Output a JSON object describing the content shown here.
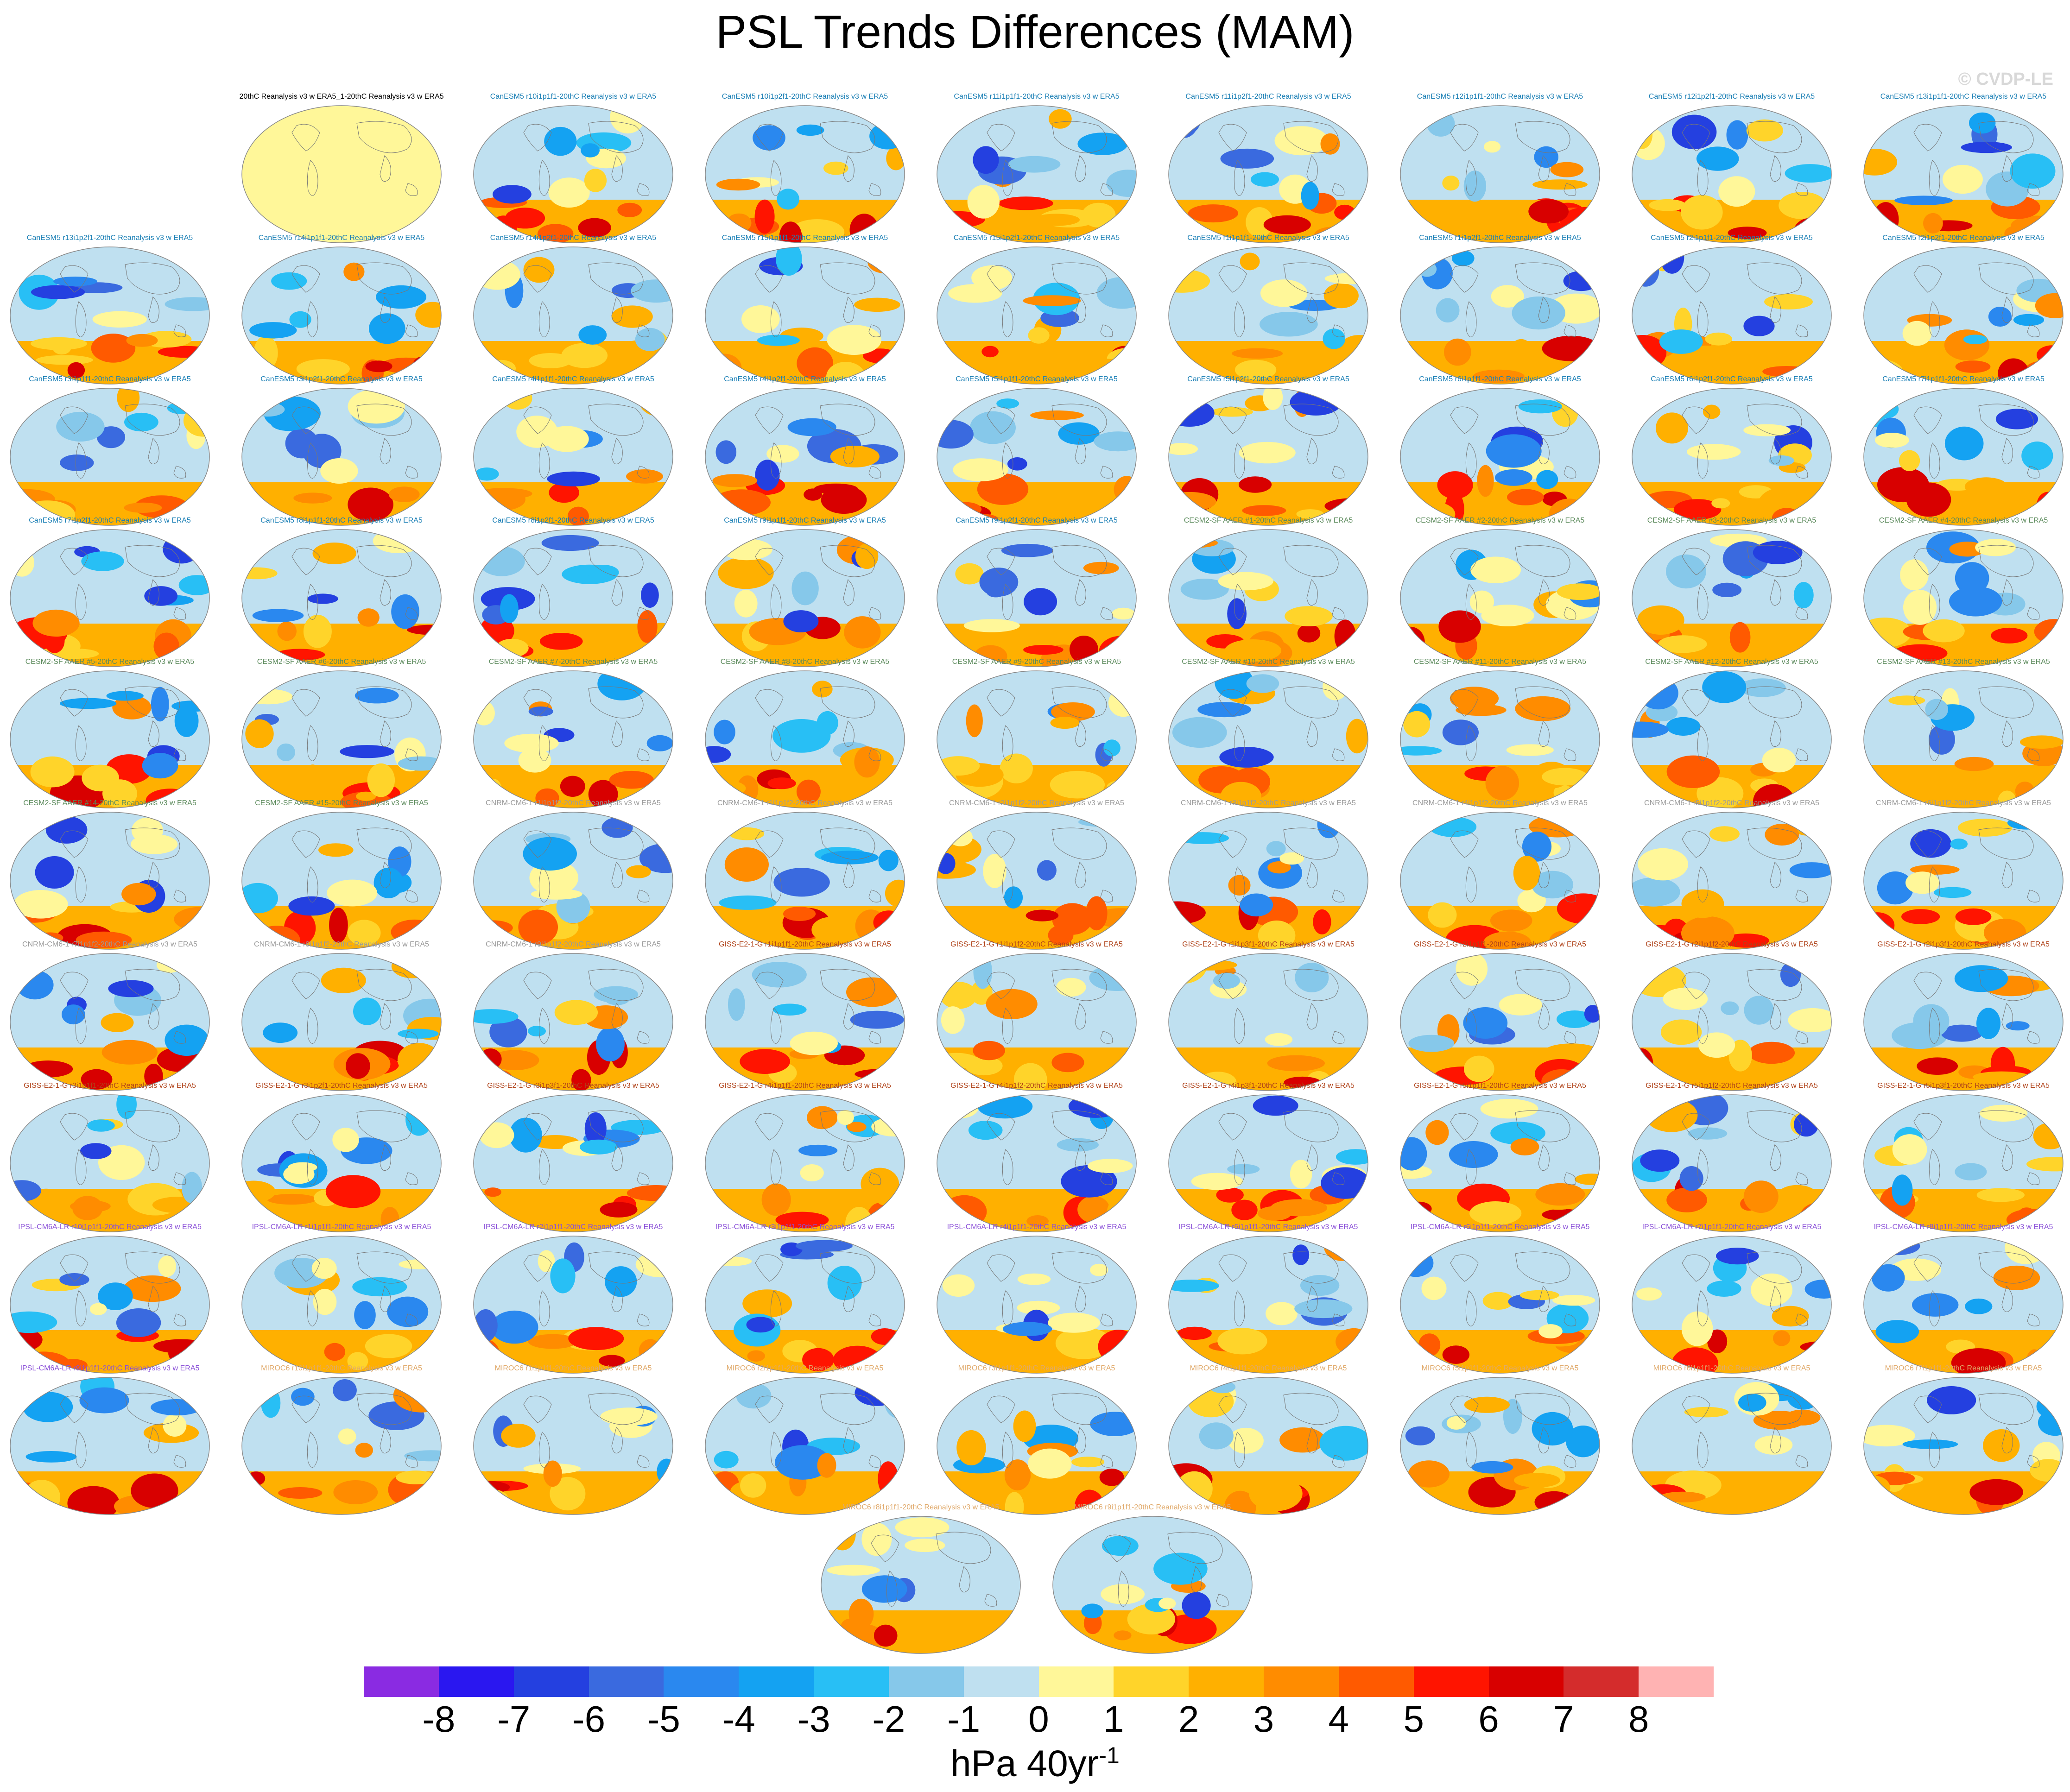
{
  "title": "PSL Trends Differences (MAM)",
  "watermark": "© CVDP-LE",
  "colors": {
    "CanESM5": "#1a7fb5",
    "CESM2": "#5b8a5b",
    "CNRM": "#9a9a9a",
    "GISS": "#b0431a",
    "IPSL": "#8a4fd8",
    "MIROC": "#e0a96a",
    "OBS": "#000000"
  },
  "panels": [
    {
      "label": "20thC Reanalysis v3 w ERA5_1-20thC Reanalysis v3 w ERA5",
      "group": "OBS"
    },
    {
      "label": "CanESM5 r10i1p1f1-20thC Reanalysis v3 w ERA5",
      "group": "CanESM5"
    },
    {
      "label": "CanESM5 r10i1p2f1-20thC Reanalysis v3 w ERA5",
      "group": "CanESM5"
    },
    {
      "label": "CanESM5 r11i1p1f1-20thC Reanalysis v3 w ERA5",
      "group": "CanESM5"
    },
    {
      "label": "CanESM5 r11i1p2f1-20thC Reanalysis v3 w ERA5",
      "group": "CanESM5"
    },
    {
      "label": "CanESM5 r12i1p1f1-20thC Reanalysis v3 w ERA5",
      "group": "CanESM5"
    },
    {
      "label": "CanESM5 r12i1p2f1-20thC Reanalysis v3 w ERA5",
      "group": "CanESM5"
    },
    {
      "label": "CanESM5 r13i1p1f1-20thC Reanalysis v3 w ERA5",
      "group": "CanESM5"
    },
    {
      "label": "CanESM5 r13i1p2f1-20thC Reanalysis v3 w ERA5",
      "group": "CanESM5"
    },
    {
      "label": "CanESM5 r14i1p1f1-20thC Reanalysis v3 w ERA5",
      "group": "CanESM5"
    },
    {
      "label": "CanESM5 r14i1p2f1-20thC Reanalysis v3 w ERA5",
      "group": "CanESM5"
    },
    {
      "label": "CanESM5 r15i1p1f1-20thC Reanalysis v3 w ERA5",
      "group": "CanESM5"
    },
    {
      "label": "CanESM5 r15i1p2f1-20thC Reanalysis v3 w ERA5",
      "group": "CanESM5"
    },
    {
      "label": "CanESM5 r1i1p1f1-20thC Reanalysis v3 w ERA5",
      "group": "CanESM5"
    },
    {
      "label": "CanESM5 r1i1p2f1-20thC Reanalysis v3 w ERA5",
      "group": "CanESM5"
    },
    {
      "label": "CanESM5 r2i1p1f1-20thC Reanalysis v3 w ERA5",
      "group": "CanESM5"
    },
    {
      "label": "CanESM5 r2i1p2f1-20thC Reanalysis v3 w ERA5",
      "group": "CanESM5"
    },
    {
      "label": "CanESM5 r3i1p1f1-20thC Reanalysis v3 w ERA5",
      "group": "CanESM5"
    },
    {
      "label": "CanESM5 r3i1p2f1-20thC Reanalysis v3 w ERA5",
      "group": "CanESM5"
    },
    {
      "label": "CanESM5 r4i1p1f1-20thC Reanalysis v3 w ERA5",
      "group": "CanESM5"
    },
    {
      "label": "CanESM5 r4i1p2f1-20thC Reanalysis v3 w ERA5",
      "group": "CanESM5"
    },
    {
      "label": "CanESM5 r5i1p1f1-20thC Reanalysis v3 w ERA5",
      "group": "CanESM5"
    },
    {
      "label": "CanESM5 r5i1p2f1-20thC Reanalysis v3 w ERA5",
      "group": "CanESM5"
    },
    {
      "label": "CanESM5 r6i1p1f1-20thC Reanalysis v3 w ERA5",
      "group": "CanESM5"
    },
    {
      "label": "CanESM5 r6i1p2f1-20thC Reanalysis v3 w ERA5",
      "group": "CanESM5"
    },
    {
      "label": "CanESM5 r7i1p1f1-20thC Reanalysis v3 w ERA5",
      "group": "CanESM5"
    },
    {
      "label": "CanESM5 r7i1p2f1-20thC Reanalysis v3 w ERA5",
      "group": "CanESM5"
    },
    {
      "label": "CanESM5 r8i1p1f1-20thC Reanalysis v3 w ERA5",
      "group": "CanESM5"
    },
    {
      "label": "CanESM5 r8i1p2f1-20thC Reanalysis v3 w ERA5",
      "group": "CanESM5"
    },
    {
      "label": "CanESM5 r9i1p1f1-20thC Reanalysis v3 w ERA5",
      "group": "CanESM5"
    },
    {
      "label": "CanESM5 r9i1p2f1-20thC Reanalysis v3 w ERA5",
      "group": "CanESM5"
    },
    {
      "label": "CESM2-SF AAER #1-20thC Reanalysis v3 w ERA5",
      "group": "CESM2"
    },
    {
      "label": "CESM2-SF AAER #2-20thC Reanalysis v3 w ERA5",
      "group": "CESM2"
    },
    {
      "label": "CESM2-SF AAER #3-20thC Reanalysis v3 w ERA5",
      "group": "CESM2"
    },
    {
      "label": "CESM2-SF AAER #4-20thC Reanalysis v3 w ERA5",
      "group": "CESM2"
    },
    {
      "label": "CESM2-SF AAER #5-20thC Reanalysis v3 w ERA5",
      "group": "CESM2"
    },
    {
      "label": "CESM2-SF AAER #6-20thC Reanalysis v3 w ERA5",
      "group": "CESM2"
    },
    {
      "label": "CESM2-SF AAER #7-20thC Reanalysis v3 w ERA5",
      "group": "CESM2"
    },
    {
      "label": "CESM2-SF AAER #8-20thC Reanalysis v3 w ERA5",
      "group": "CESM2"
    },
    {
      "label": "CESM2-SF AAER #9-20thC Reanalysis v3 w ERA5",
      "group": "CESM2"
    },
    {
      "label": "CESM2-SF AAER #10-20thC Reanalysis v3 w ERA5",
      "group": "CESM2"
    },
    {
      "label": "CESM2-SF AAER #11-20thC Reanalysis v3 w ERA5",
      "group": "CESM2"
    },
    {
      "label": "CESM2-SF AAER #12-20thC Reanalysis v3 w ERA5",
      "group": "CESM2"
    },
    {
      "label": "CESM2-SF AAER #13-20thC Reanalysis v3 w ERA5",
      "group": "CESM2"
    },
    {
      "label": "CESM2-SF AAER #14-20thC Reanalysis v3 w ERA5",
      "group": "CESM2"
    },
    {
      "label": "CESM2-SF AAER #15-20thC Reanalysis v3 w ERA5",
      "group": "CESM2"
    },
    {
      "label": "CNRM-CM6-1 r1i1p1f2-20thC Reanalysis v3 w ERA5",
      "group": "CNRM"
    },
    {
      "label": "CNRM-CM6-1 r1i1p1f2-20thC Reanalysis v3 w ERA5",
      "group": "CNRM"
    },
    {
      "label": "CNRM-CM6-1 r2i1p1f2-20thC Reanalysis v3 w ERA5",
      "group": "CNRM"
    },
    {
      "label": "CNRM-CM6-1 r3i1p1f2-20thC Reanalysis v3 w ERA5",
      "group": "CNRM"
    },
    {
      "label": "CNRM-CM6-1 r4i1p1f2-20thC Reanalysis v3 w ERA5",
      "group": "CNRM"
    },
    {
      "label": "CNRM-CM6-1 r5i1p1f2-20thC Reanalysis v3 w ERA5",
      "group": "CNRM"
    },
    {
      "label": "CNRM-CM6-1 r6i1p1f2-20thC Reanalysis v3 w ERA5",
      "group": "CNRM"
    },
    {
      "label": "CNRM-CM6-1 r7i1p1f2-20thC Reanalysis v3 w ERA5",
      "group": "CNRM"
    },
    {
      "label": "CNRM-CM6-1 r8i1p1f2-20thC Reanalysis v3 w ERA5",
      "group": "CNRM"
    },
    {
      "label": "CNRM-CM6-1 r9i1p1f2-20thC Reanalysis v3 w ERA5",
      "group": "CNRM"
    },
    {
      "label": "GISS-E2-1-G r1i1p1f1-20thC Reanalysis v3 w ERA5",
      "group": "GISS"
    },
    {
      "label": "GISS-E2-1-G r1i1p1f2-20thC Reanalysis v3 w ERA5",
      "group": "GISS"
    },
    {
      "label": "GISS-E2-1-G r1i1p3f1-20thC Reanalysis v3 w ERA5",
      "group": "GISS"
    },
    {
      "label": "GISS-E2-1-G r2i1p1f1-20thC Reanalysis v3 w ERA5",
      "group": "GISS"
    },
    {
      "label": "GISS-E2-1-G r2i1p1f2-20thC Reanalysis v3 w ERA5",
      "group": "GISS"
    },
    {
      "label": "GISS-E2-1-G r2i1p3f1-20thC Reanalysis v3 w ERA5",
      "group": "GISS"
    },
    {
      "label": "GISS-E2-1-G r3i1p1f1-20thC Reanalysis v3 w ERA5",
      "group": "GISS"
    },
    {
      "label": "GISS-E2-1-G r3i1p2f1-20thC Reanalysis v3 w ERA5",
      "group": "GISS"
    },
    {
      "label": "GISS-E2-1-G r3i1p3f1-20thC Reanalysis v3 w ERA5",
      "group": "GISS"
    },
    {
      "label": "GISS-E2-1-G r4i1p1f1-20thC Reanalysis v3 w ERA5",
      "group": "GISS"
    },
    {
      "label": "GISS-E2-1-G r4i1p1f2-20thC Reanalysis v3 w ERA5",
      "group": "GISS"
    },
    {
      "label": "GISS-E2-1-G r4i1p3f1-20thC Reanalysis v3 w ERA5",
      "group": "GISS"
    },
    {
      "label": "GISS-E2-1-G r5i1p1f1-20thC Reanalysis v3 w ERA5",
      "group": "GISS"
    },
    {
      "label": "GISS-E2-1-G r5i1p1f2-20thC Reanalysis v3 w ERA5",
      "group": "GISS"
    },
    {
      "label": "GISS-E2-1-G r5i1p3f1-20thC Reanalysis v3 w ERA5",
      "group": "GISS"
    },
    {
      "label": "IPSL-CM6A-LR r10i1p1f1-20thC Reanalysis v3 w ERA5",
      "group": "IPSL"
    },
    {
      "label": "IPSL-CM6A-LR r1i1p1f1-20thC Reanalysis v3 w ERA5",
      "group": "IPSL"
    },
    {
      "label": "IPSL-CM6A-LR r2i1p1f1-20thC Reanalysis v3 w ERA5",
      "group": "IPSL"
    },
    {
      "label": "IPSL-CM6A-LR r3i1p1f1-20thC Reanalysis v3 w ERA5",
      "group": "IPSL"
    },
    {
      "label": "IPSL-CM6A-LR r4i1p1f1-20thC Reanalysis v3 w ERA5",
      "group": "IPSL"
    },
    {
      "label": "IPSL-CM6A-LR r5i1p1f1-20thC Reanalysis v3 w ERA5",
      "group": "IPSL"
    },
    {
      "label": "IPSL-CM6A-LR r6i1p1f1-20thC Reanalysis v3 w ERA5",
      "group": "IPSL"
    },
    {
      "label": "IPSL-CM6A-LR r7i1p1f1-20thC Reanalysis v3 w ERA5",
      "group": "IPSL"
    },
    {
      "label": "IPSL-CM6A-LR r8i1p1f1-20thC Reanalysis v3 w ERA5",
      "group": "IPSL"
    },
    {
      "label": "IPSL-CM6A-LR r9i1p1f1-20thC Reanalysis v3 w ERA5",
      "group": "IPSL"
    },
    {
      "label": "MIROC6 r10i1p1f1-20thC Reanalysis v3 w ERA5",
      "group": "MIROC"
    },
    {
      "label": "MIROC6 r1i1p1f1-20thC Reanalysis v3 w ERA5",
      "group": "MIROC"
    },
    {
      "label": "MIROC6 r2i1p1f1-20thC Reanalysis v3 w ERA5",
      "group": "MIROC"
    },
    {
      "label": "MIROC6 r3i1p1f1-20thC Reanalysis v3 w ERA5",
      "group": "MIROC"
    },
    {
      "label": "MIROC6 r4i1p1f1-20thC Reanalysis v3 w ERA5",
      "group": "MIROC"
    },
    {
      "label": "MIROC6 r5i1p1f1-20thC Reanalysis v3 w ERA5",
      "group": "MIROC"
    },
    {
      "label": "MIROC6 r6i1p1f1-20thC Reanalysis v3 w ERA5",
      "group": "MIROC"
    },
    {
      "label": "MIROC6 r7i1p1f1-20thC Reanalysis v3 w ERA5",
      "group": "MIROC"
    },
    {
      "label": "MIROC6 r8i1p1f1-20thC Reanalysis v3 w ERA5",
      "group": "MIROC"
    },
    {
      "label": "MIROC6 r9i1p1f1-20thC Reanalysis v3 w ERA5",
      "group": "MIROC"
    }
  ],
  "colorbar": {
    "colors": [
      "#8a2be2",
      "#2a17f0",
      "#2440e0",
      "#3a6adf",
      "#2a88ef",
      "#14a2f2",
      "#28bff5",
      "#86c8ea",
      "#bfe0f0",
      "#fff799",
      "#ffd42a",
      "#ffb000",
      "#ff8c00",
      "#ff5a00",
      "#ff1400",
      "#d80000",
      "#d42c2c",
      "#ffb3b3"
    ],
    "ticks": [
      "-8",
      "-7",
      "-6",
      "-5",
      "-4",
      "-3",
      "-2",
      "-1",
      "0",
      "1",
      "2",
      "3",
      "4",
      "5",
      "6",
      "7",
      "8"
    ],
    "units_main": "hPa 40yr",
    "units_sup": "-1"
  }
}
